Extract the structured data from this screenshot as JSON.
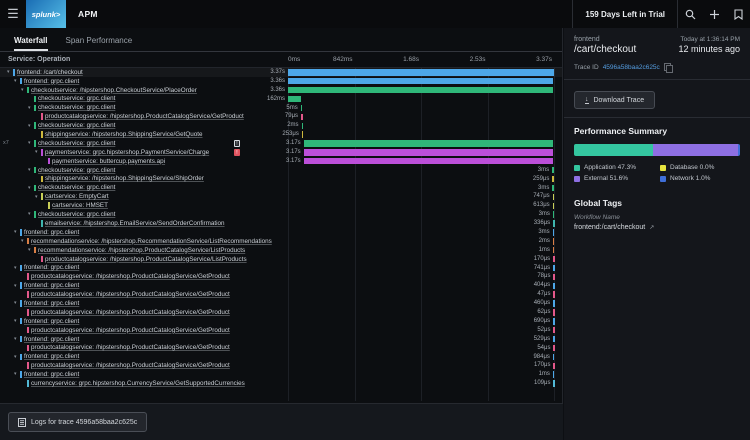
{
  "topbar": {
    "logo_text": "splunk>",
    "app_name": "APM",
    "trial_text": "159 Days Left in Trial"
  },
  "tabs": [
    {
      "label": "Waterfall",
      "active": true
    },
    {
      "label": "Span Performance",
      "active": false
    }
  ],
  "waterfall": {
    "column_header": "Service: Operation",
    "ticks": [
      "0ms",
      "842ms",
      "1.68s",
      "2.53s",
      "3.37s"
    ],
    "service_colors": {
      "frontend": "#4da7e8",
      "checkoutservice": "#2fb779",
      "productcatalogservice": "#e3588a",
      "shippingservice": "#cdb83e",
      "paymentservice": "#bc4fd9",
      "cartservice": "#c9cf58",
      "emailservice": "#3fb5ae",
      "recommendationservice": "#d97f46",
      "currencyservice": "#52b9d6"
    },
    "rows": [
      {
        "svc": "frontend",
        "op": "/cart/checkout",
        "dur": "3.37s",
        "lvl": 0,
        "parent": true,
        "bar": [
          0,
          100
        ],
        "sel": true
      },
      {
        "svc": "frontend",
        "op": "grpc.client",
        "dur": "3.36s",
        "lvl": 1,
        "parent": true,
        "bar": [
          0,
          99.7
        ]
      },
      {
        "svc": "checkoutservice",
        "op": "/hipstershop.CheckoutService/PlaceOrder",
        "dur": "3.36s",
        "lvl": 2,
        "parent": true,
        "bar": [
          0,
          99.7
        ]
      },
      {
        "svc": "checkoutservice",
        "op": "grpc.client",
        "dur": "162ms",
        "lvl": 3,
        "parent": false,
        "bar": [
          0,
          4.8
        ]
      },
      {
        "svc": "checkoutservice",
        "op": "grpc.client",
        "dur": "5ms",
        "lvl": 3,
        "parent": true,
        "bar": [
          4.8,
          0.3
        ]
      },
      {
        "svc": "productcatalogservice",
        "op": "/hipstershop.ProductCatalogService/GetProduct",
        "dur": "79μs",
        "lvl": 4,
        "parent": false,
        "bar": [
          4.9,
          0.15
        ]
      },
      {
        "svc": "checkoutservice",
        "op": "grpc.client",
        "dur": "2ms",
        "lvl": 3,
        "parent": true,
        "bar": [
          5.1,
          0.2
        ]
      },
      {
        "svc": "shippingservice",
        "op": "/hipstershop.ShippingService/GetQuote",
        "dur": "253μs",
        "lvl": 4,
        "parent": false,
        "bar": [
          5.2,
          0.15
        ]
      },
      {
        "svc": "checkoutservice",
        "op": "grpc.client",
        "dur": "3.17s",
        "lvl": 3,
        "parent": true,
        "bar": [
          5.9,
          93.9
        ],
        "badge": "warn",
        "count": "x7"
      },
      {
        "svc": "paymentservice",
        "op": "grpc.hipstershop.PaymentService/Charge",
        "dur": "3.17s",
        "lvl": 4,
        "parent": true,
        "bar": [
          5.9,
          93.9
        ],
        "badge": "error"
      },
      {
        "svc": "paymentservice",
        "op": "buttercup.payments.api",
        "dur": "3.17s",
        "lvl": 5,
        "parent": false,
        "bar": [
          5.9,
          93.9
        ]
      },
      {
        "svc": "checkoutservice",
        "op": "grpc.client",
        "dur": "3ms",
        "lvl": 3,
        "parent": true,
        "bar": [
          99.3,
          0.4
        ]
      },
      {
        "svc": "shippingservice",
        "op": "/hipstershop.ShippingService/ShipOrder",
        "dur": "259μs",
        "lvl": 4,
        "parent": false,
        "bar": [
          99.4,
          0.2
        ]
      },
      {
        "svc": "checkoutservice",
        "op": "grpc.client",
        "dur": "3ms",
        "lvl": 3,
        "parent": true,
        "bar": [
          99.4,
          0.4
        ]
      },
      {
        "svc": "cartservice",
        "op": "EmptyCart",
        "dur": "747μs",
        "lvl": 4,
        "parent": true,
        "bar": [
          99.5,
          0.3
        ]
      },
      {
        "svc": "cartservice",
        "op": "HMSET",
        "dur": "613μs",
        "lvl": 5,
        "parent": false,
        "bar": [
          99.5,
          0.3
        ]
      },
      {
        "svc": "checkoutservice",
        "op": "grpc.client",
        "dur": "3ms",
        "lvl": 3,
        "parent": true,
        "bar": [
          99.6,
          0.4
        ]
      },
      {
        "svc": "emailservice",
        "op": "/hipstershop.EmailService/SendOrderConfirmation",
        "dur": "336μs",
        "lvl": 4,
        "parent": false,
        "bar": [
          99.7,
          0.2
        ]
      },
      {
        "svc": "frontend",
        "op": "grpc.client",
        "dur": "3ms",
        "lvl": 1,
        "parent": true,
        "bar": [
          99.5,
          0.5
        ]
      },
      {
        "svc": "recommendationservice",
        "op": "/hipstershop.RecommendationService/ListRecommendations",
        "dur": "2ms",
        "lvl": 2,
        "parent": true,
        "bar": [
          99.6,
          0.4
        ]
      },
      {
        "svc": "recommendationservice",
        "op": "/hipstershop.ProductCatalogService/ListProducts",
        "dur": "1ms",
        "lvl": 3,
        "parent": true,
        "bar": [
          99.6,
          0.3
        ]
      },
      {
        "svc": "productcatalogservice",
        "op": "/hipstershop.ProductCatalogService/ListProducts",
        "dur": "170μs",
        "lvl": 4,
        "parent": false,
        "bar": [
          99.7,
          0.2
        ]
      },
      {
        "svc": "frontend",
        "op": "grpc.client",
        "dur": "741μs",
        "lvl": 1,
        "parent": true,
        "bar": [
          99.7,
          0.3
        ]
      },
      {
        "svc": "productcatalogservice",
        "op": "/hipstershop.ProductCatalogService/GetProduct",
        "dur": "78μs",
        "lvl": 2,
        "parent": false,
        "bar": [
          99.8,
          0.15
        ]
      },
      {
        "svc": "frontend",
        "op": "grpc.client",
        "dur": "404μs",
        "lvl": 1,
        "parent": true,
        "bar": [
          99.7,
          0.3
        ]
      },
      {
        "svc": "productcatalogservice",
        "op": "/hipstershop.ProductCatalogService/GetProduct",
        "dur": "47μs",
        "lvl": 2,
        "parent": false,
        "bar": [
          99.8,
          0.15
        ]
      },
      {
        "svc": "frontend",
        "op": "grpc.client",
        "dur": "460μs",
        "lvl": 1,
        "parent": true,
        "bar": [
          99.7,
          0.3
        ]
      },
      {
        "svc": "productcatalogservice",
        "op": "/hipstershop.ProductCatalogService/GetProduct",
        "dur": "62μs",
        "lvl": 2,
        "parent": false,
        "bar": [
          99.8,
          0.15
        ]
      },
      {
        "svc": "frontend",
        "op": "grpc.client",
        "dur": "690μs",
        "lvl": 1,
        "parent": true,
        "bar": [
          99.7,
          0.3
        ]
      },
      {
        "svc": "productcatalogservice",
        "op": "/hipstershop.ProductCatalogService/GetProduct",
        "dur": "52μs",
        "lvl": 2,
        "parent": false,
        "bar": [
          99.8,
          0.15
        ]
      },
      {
        "svc": "frontend",
        "op": "grpc.client",
        "dur": "529μs",
        "lvl": 1,
        "parent": true,
        "bar": [
          99.7,
          0.3
        ]
      },
      {
        "svc": "productcatalogservice",
        "op": "/hipstershop.ProductCatalogService/GetProduct",
        "dur": "54μs",
        "lvl": 2,
        "parent": false,
        "bar": [
          99.8,
          0.15
        ]
      },
      {
        "svc": "frontend",
        "op": "grpc.client",
        "dur": "984μs",
        "lvl": 1,
        "parent": true,
        "bar": [
          99.6,
          0.4
        ]
      },
      {
        "svc": "productcatalogservice",
        "op": "/hipstershop.ProductCatalogService/GetProduct",
        "dur": "170μs",
        "lvl": 2,
        "parent": false,
        "bar": [
          99.8,
          0.15
        ]
      },
      {
        "svc": "frontend",
        "op": "grpc.client",
        "dur": "1ms",
        "lvl": 1,
        "parent": true,
        "bar": [
          99.6,
          0.4
        ]
      },
      {
        "svc": "currencyservice",
        "op": "grpc.hipstershop.CurrencyService/GetSupportedCurrencies",
        "dur": "109μs",
        "lvl": 2,
        "parent": false,
        "bar": [
          99.8,
          0.15
        ]
      }
    ]
  },
  "sidebar": {
    "service": "frontend",
    "operation": "/cart/checkout",
    "timestamp": "Today at 1:36:14 PM",
    "relative_time": "12 minutes ago",
    "trace_id_label": "Trace ID",
    "trace_id": "4596a58baa2c625c",
    "download_button": "Download Trace",
    "performance_summary": {
      "title": "Performance Summary",
      "segments": [
        {
          "label": "Application",
          "value": "47.3%",
          "pct": 47.3,
          "color": "#34c6a0"
        },
        {
          "label": "Database",
          "value": "0.0%",
          "pct": 0.0,
          "color": "#e5e33f"
        },
        {
          "label": "External",
          "value": "51.6%",
          "pct": 51.6,
          "color": "#8e6fe3"
        },
        {
          "label": "Network",
          "value": "1.0%",
          "pct": 1.0,
          "color": "#3f6fd9"
        }
      ]
    },
    "global_tags": {
      "title": "Global Tags",
      "tag_name": "Workflow Name",
      "tag_value": "frontend:/cart/checkout"
    }
  },
  "footer": {
    "logs_button": "Logs for trace 4596a58baa2c625c"
  }
}
